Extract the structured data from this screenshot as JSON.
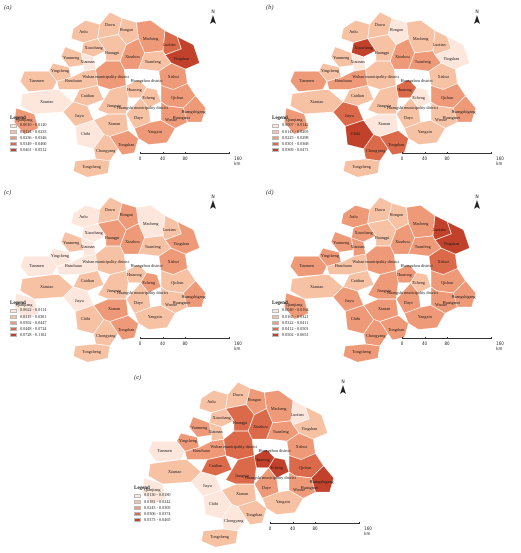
{
  "panels": [
    {
      "id": "a",
      "label": "(a)",
      "legend_title": "Legend",
      "legend": [
        "0.0010 - 0.0120",
        "0.0124 - 0.0233",
        "0.0236 - 0.0346",
        "0.0349 - 0.0460",
        "0.0461 - 0.0512"
      ],
      "palette": [
        "#fde7dc",
        "#f7c1a4",
        "#ee9a78",
        "#db6a4b",
        "#c1412b"
      ],
      "classes": {
        "Anlu": 2,
        "Dawu": 2,
        "Hongan": 2,
        "Macheng": 3,
        "Luotian": 4,
        "Yingshan": 5,
        "Xiaochang": 2,
        "Yunmeng": 2,
        "Yingcheng": 2,
        "Xiaonan": 1,
        "Huangpi": 2,
        "Xinzhou": 3,
        "Tuanfeng": 2,
        "Tianmen": 2,
        "Hanchuan": 2,
        "Wuhan": 3,
        "Xishui": 3,
        "Caidian": 2,
        "Huarong": 2,
        "Echeng": 2,
        "Qichun": 3,
        "Huangshigang": 3,
        "Xiantao": 1,
        "Qianjiang": 3,
        "Jiangxia": 2,
        "Huangmei": 3,
        "Daye": 2,
        "Wuxue": 3,
        "Jiayu": 2,
        "Chibi": 1,
        "Xianan": 2,
        "Yangxin": 3,
        "Chongyang": 2,
        "Tongshan": 3,
        "Tongcheng": 2
      }
    },
    {
      "id": "b",
      "label": "(b)",
      "legend_title": "Legend",
      "legend": [
        "0.0007 - 0.0142",
        "0.0143 - 0.0205",
        "0.0225 - 0.0298",
        "0.0301 - 0.0368",
        "0.0369 - 0.0471"
      ],
      "palette": [
        "#fde7dc",
        "#f7c1a4",
        "#ee9a78",
        "#db6a4b",
        "#c1412b"
      ],
      "classes": {
        "Anlu": 2,
        "Dawu": 2,
        "Hongan": 1,
        "Macheng": 2,
        "Luotian": 2,
        "Yingshan": 1,
        "Xiaochang": 5,
        "Yunmeng": 2,
        "Yingcheng": 2,
        "Xiaonan": 1,
        "Huangpi": 2,
        "Xinzhou": 3,
        "Tuanfeng": 3,
        "Tianmen": 3,
        "Hanchuan": 3,
        "Wuhan": 2,
        "Xishui": 2,
        "Caidian": 2,
        "Huarong": 4,
        "Echeng": 1,
        "Qichun": 3,
        "Huangshigang": 3,
        "Xiantao": 2,
        "Qianjiang": 3,
        "Jiangxia": 2,
        "Huangmei": 3,
        "Daye": 2,
        "Wuxue": 2,
        "Jiayu": 4,
        "Chibi": 5,
        "Xianan": 1,
        "Yangxin": 2,
        "Chongyang": 4,
        "Tongshan": 4,
        "Tongcheng": 2
      }
    },
    {
      "id": "c",
      "label": "(c)",
      "legend_title": "Legend",
      "legend": [
        "0.0022 - 0.0114",
        "0.0115 - 0.0301",
        "0.0302 - 0.0447",
        "0.0448 - 0.0724",
        "0.0728 - 0.1102"
      ],
      "palette": [
        "#fde7dc",
        "#f7c1a4",
        "#ee9a78",
        "#db6a4b",
        "#c1412b"
      ],
      "classes": {
        "Anlu": 1,
        "Dawu": 2,
        "Hongan": 3,
        "Macheng": 1,
        "Luotian": 2,
        "Yingshan": 3,
        "Xiaochang": 1,
        "Yunmeng": 2,
        "Yingcheng": 1,
        "Xiaonan": 1,
        "Huangpi": 3,
        "Xinzhou": 3,
        "Tuanfeng": 2,
        "Tianmen": 1,
        "Hanchuan": 1,
        "Wuhan": 2,
        "Xishui": 3,
        "Caidian": 2,
        "Huarong": 2,
        "Echeng": 3,
        "Qichun": 2,
        "Huangshigang": 3,
        "Xiantao": 2,
        "Qianjiang": 1,
        "Jiangxia": 2,
        "Huangmei": 2,
        "Daye": 2,
        "Wuxue": 2,
        "Jiayu": 1,
        "Chibi": 2,
        "Xianan": 3,
        "Yangxin": 2,
        "Chongyang": 2,
        "Tongshan": 3,
        "Tongcheng": 2
      }
    },
    {
      "id": "d",
      "label": "(d)",
      "legend_title": "Legend",
      "legend": [
        "0.0040 - 0.0164",
        "0.0165 - 0.0321",
        "0.0322 - 0.0411",
        "0.0412 - 0.0501",
        "0.0502 - 0.0651"
      ],
      "palette": [
        "#fde7dc",
        "#f7c1a4",
        "#ee9a78",
        "#db6a4b",
        "#c1412b"
      ],
      "classes": {
        "Anlu": 3,
        "Dawu": 2,
        "Hongan": 2,
        "Macheng": 3,
        "Luotian": 5,
        "Yingshan": 5,
        "Xiaochang": 3,
        "Yunmeng": 3,
        "Yingcheng": 3,
        "Xiaonan": 3,
        "Huangpi": 2,
        "Xinzhou": 3,
        "Tuanfeng": 3,
        "Tianmen": 3,
        "Hanchuan": 2,
        "Wuhan": 3,
        "Xishui": 4,
        "Caidian": 2,
        "Huarong": 3,
        "Echeng": 2,
        "Qichun": 3,
        "Huangshigang": 3,
        "Xiantao": 2,
        "Qianjiang": 3,
        "Jiangxia": 3,
        "Huangmei": 3,
        "Daye": 3,
        "Wuxue": 3,
        "Jiayu": 3,
        "Chibi": 3,
        "Xianan": 3,
        "Yangxin": 3,
        "Chongyang": 3,
        "Tongshan": 3,
        "Tongcheng": 3
      }
    },
    {
      "id": "e",
      "label": "(e)",
      "legend_title": "Legend",
      "legend": [
        "0.0130 - 0.0180",
        "0.0181 - 0.0242",
        "0.0243 - 0.0305",
        "0.0306 - 0.0374",
        "0.0375 - 0.0465"
      ],
      "palette": [
        "#fde7dc",
        "#f7c1a4",
        "#ee9a78",
        "#db6a4b",
        "#c1412b"
      ],
      "classes": {
        "Anlu": 2,
        "Dawu": 2,
        "Hongan": 3,
        "Macheng": 3,
        "Luotian": 1,
        "Yingshan": 2,
        "Xiaochang": 2,
        "Yunmeng": 3,
        "Yingcheng": 3,
        "Xiaonan": 2,
        "Huangpi": 4,
        "Xinzhou": 4,
        "Tuanfeng": 3,
        "Tianmen": 1,
        "Hanchuan": 3,
        "Wuhan": 4,
        "Xishui": 3,
        "Caidian": 4,
        "Huarong": 5,
        "Echeng": 5,
        "Qichun": 4,
        "Huangshigang": 5,
        "Xiantao": 2,
        "Qianjiang": 1,
        "Jiangxia": 4,
        "Huangmei": 3,
        "Daye": 3,
        "Wuxue": 3,
        "Jiayu": 1,
        "Chibi": 1,
        "Xianan": 2,
        "Yangxin": 2,
        "Chongyang": 1,
        "Tongshan": 2,
        "Tongcheng": 2
      }
    }
  ],
  "city_names": {
    "Anlu": "Anlu",
    "Dawu": "Dawu",
    "Hongan": "Hongan",
    "Macheng": "Macheng",
    "Luotian": "Luotian",
    "Yingshan": "Yingshan",
    "Xiaochang": "Xiaochang",
    "Yunmeng": "Yunmeng",
    "Yingcheng": "Yingcheng",
    "Xiaonan": "Xiaonan",
    "Huangpi": "Huangpi",
    "Xinzhou": "Xinzhou",
    "Tuanfeng": "Tuanfeng",
    "Tianmen": "Tianmen",
    "Hanchuan": "Hanchuan",
    "Wuhan": "Wuhan municipality district",
    "Xishui": "Xishui",
    "Caidian": "Caidian",
    "Huarong": "Huarong",
    "Echeng": "Echeng",
    "Qichun": "Qichun",
    "Huangshigang": "Huangshigang",
    "Xiantao": "Xiantao",
    "Qianjiang": "Qianjiang",
    "Jiangxia": "Jiangxia",
    "Huangmei": "Huangmei",
    "Huangzhou": "Huangzhou district",
    "Huangshi": "Huangshi municipality district",
    "Daye": "Daye",
    "Wuxue": "Wuxue",
    "Jiayu": "Jiayu",
    "Chibi": "Chibi",
    "Xianan": "Xianan",
    "Yangxin": "Yangxin",
    "Chongyang": "Chongyang",
    "Tongshan": "Tongshan",
    "Tongcheng": "Tongcheng"
  },
  "north_label": "N",
  "scale": {
    "ticks": [
      "0",
      "40",
      "80",
      "160 km"
    ]
  }
}
